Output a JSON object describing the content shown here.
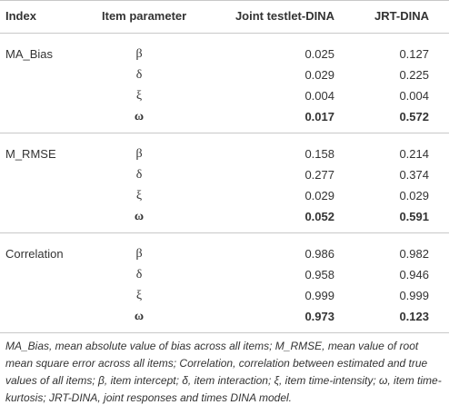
{
  "table": {
    "header": [
      "Index",
      "Item parameter",
      "Joint testlet-DINA",
      "JRT-DINA"
    ],
    "groups": [
      {
        "index": "MA_Bias",
        "rows": [
          {
            "param": "β",
            "values": [
              "0.025",
              "0.127"
            ],
            "bold": false
          },
          {
            "param": "δ",
            "values": [
              "0.029",
              "0.225"
            ],
            "bold": false
          },
          {
            "param": "ξ",
            "values": [
              "0.004",
              "0.004"
            ],
            "bold": false
          },
          {
            "param": "ω",
            "values": [
              "0.017",
              "0.572"
            ],
            "bold": true
          }
        ]
      },
      {
        "index": "M_RMSE",
        "rows": [
          {
            "param": "β",
            "values": [
              "0.158",
              "0.214"
            ],
            "bold": false
          },
          {
            "param": "δ",
            "values": [
              "0.277",
              "0.374"
            ],
            "bold": false
          },
          {
            "param": "ξ",
            "values": [
              "0.029",
              "0.029"
            ],
            "bold": false
          },
          {
            "param": "ω",
            "values": [
              "0.052",
              "0.591"
            ],
            "bold": true
          }
        ]
      },
      {
        "index": "Correlation",
        "rows": [
          {
            "param": "β",
            "values": [
              "0.986",
              "0.982"
            ],
            "bold": false
          },
          {
            "param": "δ",
            "values": [
              "0.958",
              "0.946"
            ],
            "bold": false
          },
          {
            "param": "ξ",
            "values": [
              "0.999",
              "0.999"
            ],
            "bold": false
          },
          {
            "param": "ω",
            "values": [
              "0.973",
              "0.123"
            ],
            "bold": true
          }
        ]
      }
    ],
    "footnote": "MA_Bias, mean absolute value of bias across all items; M_RMSE, mean value of root mean square error across all items; Correlation, correlation between estimated and true values of all items; β, item intercept; δ, item interaction; ξ, item time-intensity; ω, item time-kurtosis; JRT-DINA, joint responses and times DINA model."
  }
}
